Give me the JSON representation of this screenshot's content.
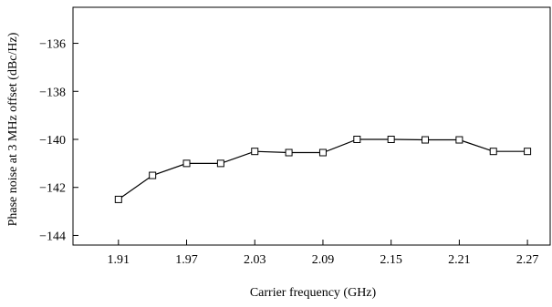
{
  "chart_data": {
    "type": "line",
    "title": "",
    "xlabel": "Carrier frequency (GHz)",
    "ylabel": "Phase noise at 3 MHz offset (dBc/Hz)",
    "xlim": [
      1.87,
      2.29
    ],
    "ylim": [
      -144.4,
      -134.5
    ],
    "x_ticks": [
      "1.91",
      "1.97",
      "2.03",
      "2.09",
      "2.15",
      "2.21",
      "2.27"
    ],
    "y_ticks": [
      "−136",
      "−138",
      "−140",
      "−142",
      "−144"
    ],
    "grid": false,
    "legend": "none",
    "marker": "open-square",
    "series": [
      {
        "x": [
          1.91,
          1.94,
          1.97,
          2.0,
          2.03,
          2.06,
          2.09,
          2.12,
          2.15,
          2.18,
          2.21,
          2.24,
          2.27
        ],
        "y": [
          -142.5,
          -141.5,
          -141.0,
          -141.0,
          -140.5,
          -140.55,
          -140.55,
          -140.0,
          -140.0,
          -140.02,
          -140.02,
          -140.5,
          -140.5
        ]
      }
    ]
  }
}
